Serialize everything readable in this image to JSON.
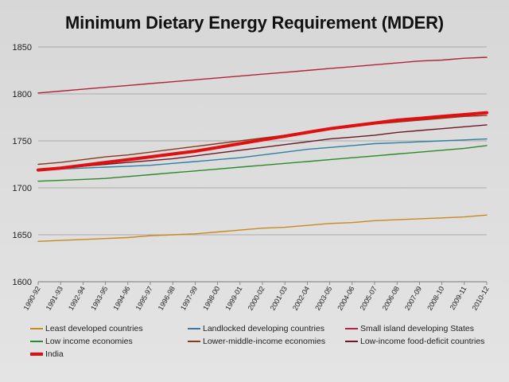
{
  "chart_data": {
    "type": "line",
    "title": "Minimum Dietary Energy Requirement (MDER)",
    "xlabel": "",
    "ylabel": "",
    "ylim": [
      1600,
      1850
    ],
    "yticks": [
      1600,
      1650,
      1700,
      1750,
      1800,
      1850
    ],
    "grid": true,
    "legend_position": "bottom",
    "categories": [
      "1990-92",
      "1991-93",
      "1992-94",
      "1993-95",
      "1994-96",
      "1995-97",
      "1996-98",
      "1997-99",
      "1998-00",
      "1999-01",
      "2000-02",
      "2001-03",
      "2002-04",
      "2003-05",
      "2004-06",
      "2005-07",
      "2006-08",
      "2007-09",
      "2008-10",
      "2009-11",
      "2010-12"
    ],
    "series": [
      {
        "name": "Least developed countries",
        "color": "#c8891e",
        "width": 1.4,
        "values": [
          1643,
          1644,
          1645,
          1646,
          1647,
          1649,
          1650,
          1651,
          1653,
          1655,
          1657,
          1658,
          1660,
          1662,
          1663,
          1665,
          1666,
          1667,
          1668,
          1669,
          1671
        ]
      },
      {
        "name": "Landlocked developing countries",
        "color": "#2e7fa0",
        "width": 1.4,
        "values": [
          1719,
          1720,
          1721,
          1722,
          1723,
          1724,
          1726,
          1728,
          1730,
          1732,
          1735,
          1738,
          1741,
          1743,
          1745,
          1747,
          1748,
          1749,
          1750,
          1751,
          1752
        ]
      },
      {
        "name": "Small island developing States",
        "color": "#b0243a",
        "width": 1.4,
        "values": [
          1801,
          1803,
          1805,
          1807,
          1809,
          1811,
          1813,
          1815,
          1817,
          1819,
          1821,
          1823,
          1825,
          1827,
          1829,
          1831,
          1833,
          1835,
          1836,
          1838,
          1839
        ]
      },
      {
        "name": "Low income economies",
        "color": "#2a8a2a",
        "width": 1.4,
        "values": [
          1707,
          1708,
          1709,
          1710,
          1712,
          1714,
          1716,
          1718,
          1720,
          1722,
          1724,
          1726,
          1728,
          1730,
          1732,
          1734,
          1736,
          1738,
          1740,
          1742,
          1745
        ]
      },
      {
        "name": "Lower-middle-income economies",
        "color": "#8a3a1a",
        "width": 1.4,
        "values": [
          1725,
          1727,
          1730,
          1733,
          1735,
          1738,
          1741,
          1744,
          1747,
          1750,
          1753,
          1756,
          1759,
          1762,
          1765,
          1768,
          1770,
          1772,
          1774,
          1776,
          1777
        ]
      },
      {
        "name": "Low-income food-deficit countries",
        "color": "#6a1a24",
        "width": 1.4,
        "values": [
          1719,
          1721,
          1723,
          1725,
          1727,
          1729,
          1731,
          1734,
          1737,
          1740,
          1743,
          1746,
          1749,
          1752,
          1754,
          1756,
          1759,
          1761,
          1763,
          1765,
          1767
        ]
      },
      {
        "name": "India",
        "color": "#e01010",
        "width": 4,
        "values": [
          1719,
          1721,
          1724,
          1727,
          1730,
          1733,
          1736,
          1739,
          1743,
          1747,
          1751,
          1755,
          1759,
          1763,
          1766,
          1769,
          1772,
          1774,
          1776,
          1778,
          1780
        ]
      }
    ]
  }
}
